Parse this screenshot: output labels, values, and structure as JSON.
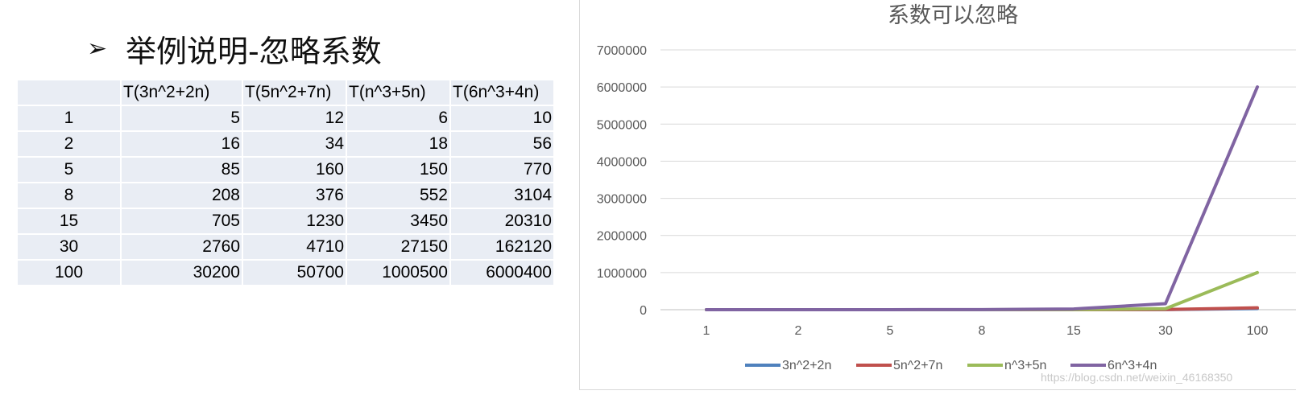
{
  "page": {
    "heading_bullet": "➢",
    "heading": "举例说明-忽略系数",
    "watermark": "https://blog.csdn.net/weixin_46168350"
  },
  "table": {
    "headers": [
      "",
      "T(3n^2+2n)",
      "T(5n^2+7n)",
      "T(n^3+5n)",
      "T(6n^3+4n)"
    ],
    "rows": [
      [
        "1",
        "5",
        "12",
        "6",
        "10"
      ],
      [
        "2",
        "16",
        "34",
        "18",
        "56"
      ],
      [
        "5",
        "85",
        "160",
        "150",
        "770"
      ],
      [
        "8",
        "208",
        "376",
        "552",
        "3104"
      ],
      [
        "15",
        "705",
        "1230",
        "3450",
        "20310"
      ],
      [
        "30",
        "2760",
        "4710",
        "27150",
        "162120"
      ],
      [
        "100",
        "30200",
        "50700",
        "1000500",
        "6000400"
      ]
    ]
  },
  "chart_data": {
    "type": "line",
    "title": "系数可以忽略",
    "categories": [
      "1",
      "2",
      "5",
      "8",
      "15",
      "30",
      "100"
    ],
    "series": [
      {
        "name": "3n^2+2n",
        "color": "#4f81bd",
        "values": [
          5,
          16,
          85,
          208,
          705,
          2760,
          30200
        ]
      },
      {
        "name": "5n^2+7n",
        "color": "#c0504d",
        "values": [
          12,
          34,
          160,
          376,
          1230,
          4710,
          50700
        ]
      },
      {
        "name": "n^3+5n",
        "color": "#9bbb59",
        "values": [
          6,
          18,
          150,
          552,
          3450,
          27150,
          1000500
        ]
      },
      {
        "name": "6n^3+4n",
        "color": "#8064a2",
        "values": [
          10,
          56,
          770,
          3104,
          20310,
          162120,
          6000400
        ]
      }
    ],
    "ylim": [
      0,
      7000000
    ],
    "yticks": [
      "0",
      "1000000",
      "2000000",
      "3000000",
      "4000000",
      "5000000",
      "6000000",
      "7000000"
    ],
    "xlabel": "",
    "ylabel": "",
    "grid": true,
    "legend": "bottom"
  }
}
